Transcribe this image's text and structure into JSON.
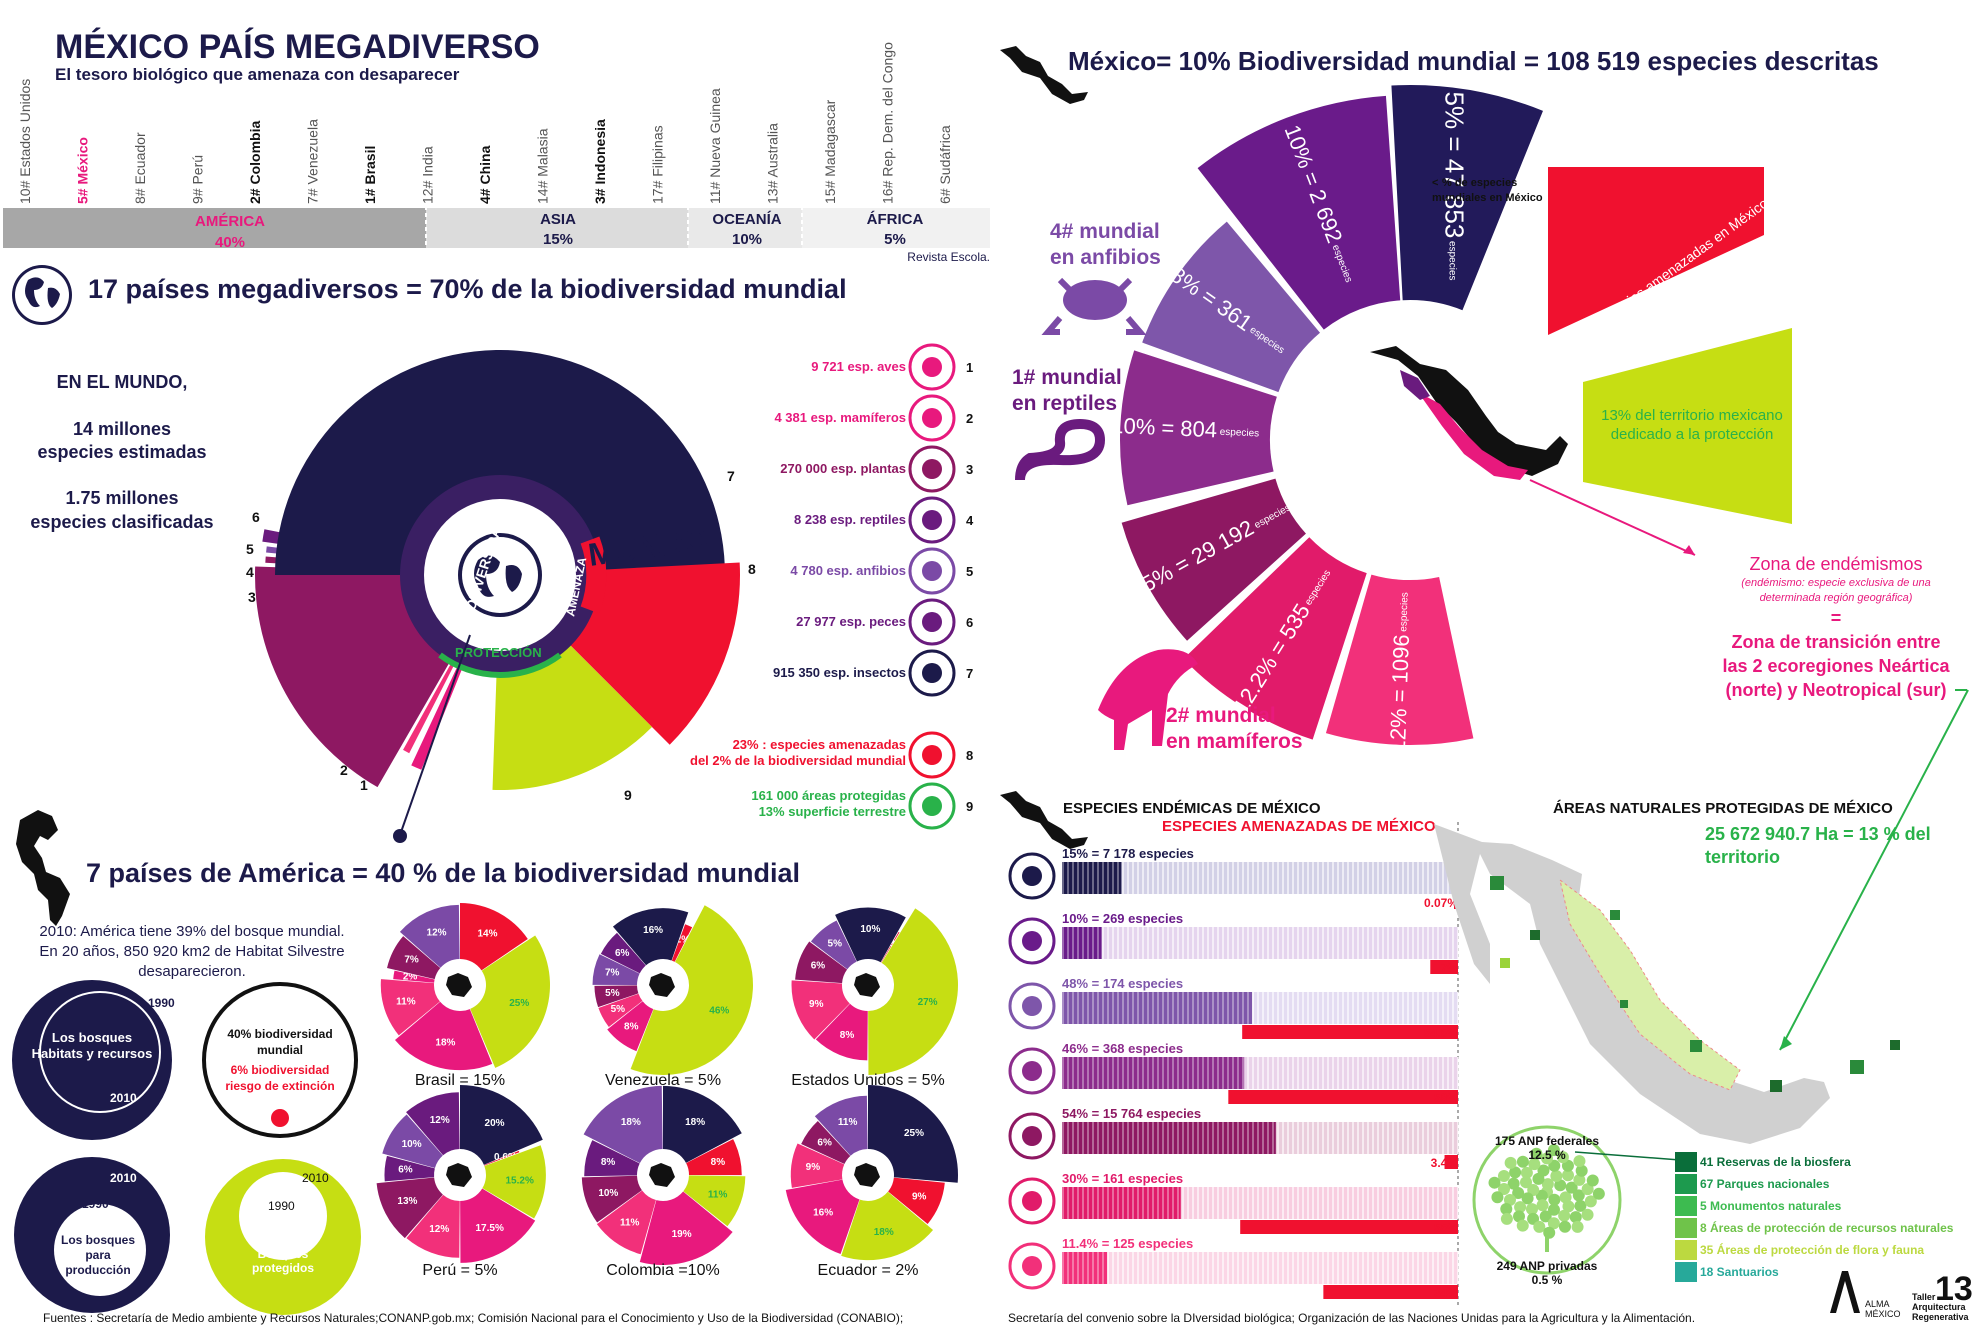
{
  "colors": {
    "navy": "#1c1a4a",
    "magenta": "#e8197d",
    "red": "#f0112f",
    "lime": "#c6de13",
    "purple": "#6a1b7e",
    "violet": "#7b4aa6",
    "plum": "#8e1862",
    "pink": "#f2307a",
    "green": "#29b24a",
    "gray": "#a8a8a8",
    "lightgray": "#e9e9e9"
  },
  "header": {
    "title": "MÉXICO PAÍS MEGADIVERSO",
    "subtitle": "El tesoro biológico que amenaza con desaparecer",
    "source": "Revista Escola."
  },
  "countries": [
    "10# Estados Unidos",
    "5# México",
    "8# Ecuador",
    "9# Perú",
    "2# Colombia",
    "7# Venezuela",
    "1# Brasil",
    "12# India",
    "4# China",
    "14# Malasia",
    "3# Indonesia",
    "17# Filipinas",
    "11# Nueva Guinea",
    "13# Australia",
    "15# Madagascar",
    "16# Rep. Dem. del Congo",
    "6# Sudáfrica"
  ],
  "regions": [
    {
      "name": "AMÉRICA",
      "pct": "40%"
    },
    {
      "name": "ASIA",
      "pct": "15%"
    },
    {
      "name": "OCEANÍA",
      "pct": "10%"
    },
    {
      "name": "ÁFRICA",
      "pct": "5%"
    }
  ],
  "world": {
    "heading": "17 países megadiversos = 70% de la biodiversidad mundial",
    "left_lines": [
      "EN EL MUNDO,",
      "14 millones",
      "especies estimadas",
      "1.75 millones",
      "especies clasificadas"
    ],
    "center_labels": {
      "mundo": "MUNDO",
      "biodiversidad": "BIODIVERSIDAD",
      "amenaza": "AMENAZA",
      "proteccion": "PROTECCIÓN"
    },
    "legend": [
      {
        "n": "1",
        "text": "9 721 esp. aves",
        "icon": "bird-icon"
      },
      {
        "n": "2",
        "text": "4 381 esp. mamíferos",
        "icon": "elephant-icon"
      },
      {
        "n": "3",
        "text": "270 000 esp. plantas",
        "icon": "tree-icon"
      },
      {
        "n": "4",
        "text": "8 238 esp. reptiles",
        "icon": "snake-icon"
      },
      {
        "n": "5",
        "text": "4 780 esp. anfibios",
        "icon": "frog-icon"
      },
      {
        "n": "6",
        "text": "27 977 esp. peces",
        "icon": "fish-icon"
      },
      {
        "n": "7",
        "text": "915 350 esp. insectos",
        "icon": "beetle-icon"
      },
      {
        "n": "8",
        "text": "23% : especies amenazadas",
        "text2": "del 2% de la biodiversidad mundial",
        "icon": "monkey-icon"
      },
      {
        "n": "9",
        "text": "161 000 áreas protegidas",
        "text2": "13% superficie terrestre",
        "icon": "tree-icon"
      }
    ]
  },
  "america": {
    "heading": "7 países de América = 40 % de la biodiversidad mundial",
    "note": [
      "2010: América tiene 39% del bosque mundial.",
      "En 20 años, 850 920 km2 de Habitat Silvestre",
      "desaparecieron."
    ],
    "circles": {
      "c1_title": [
        "Los bosques",
        "Habitats y recursos"
      ],
      "c1_y1": "1990",
      "c1_y2": "2010",
      "c2_title": [
        "40% biodiversidad",
        "mundial"
      ],
      "c2_red": [
        "6% biodiversidad",
        "riesgo de extinción"
      ],
      "c3_title": [
        "Los bosques",
        "para",
        "producción"
      ],
      "c3_y1": "2010",
      "c3_y2": "1990",
      "c4_title": [
        "Bosques",
        "protegidos"
      ],
      "c4_y1": "2010",
      "c4_y2": "1990"
    }
  },
  "mexico": {
    "heading": "México= 10% Biodiversidad mundial = 108 519 especies descritas",
    "note": [
      "% de especies",
      "mundiales en México"
    ],
    "ranks": [
      "4# mundial",
      "en anfibios",
      "1# mundial",
      "en reptiles",
      "2# mundial",
      "en mamíferos"
    ],
    "red_box": "1 810 especies amenazadas en México",
    "lime_box": [
      "13% del territorio mexicano",
      "dedicado a la protección"
    ],
    "endemism": [
      "Zona de endémismos",
      "(endémismo: especie exclusiva de una",
      "determinada región geográfica)",
      "=",
      "Zona de transición entre",
      "las 2 ecoregiones Neártica",
      "(norte) y Neotropical (sur)"
    ]
  },
  "endemic": {
    "title": "ESPECIES ENDÉMICAS DE MÉXICO",
    "subtitle": "ESPECIES AMENAZADAS DE MÉXICO",
    "rows": [
      {
        "label": "15% = 7 178 especies",
        "threat": "0.07%",
        "icon": "beetle-icon"
      },
      {
        "label": "10% = 269 especies",
        "threat": "7%",
        "icon": "fish-icon"
      },
      {
        "label": "48% = 174 especies",
        "threat": "54.5%",
        "icon": "frog-icon"
      },
      {
        "label": "46% = 368 especies",
        "threat": "58%",
        "icon": "snake-icon"
      },
      {
        "label": "54% = 15 764 especies",
        "threat": "3.4%",
        "icon": "tree-icon"
      },
      {
        "label": "30% = 161 especies",
        "threat": "55%",
        "icon": "elephant-icon"
      },
      {
        "label": "11.4% = 125 especies",
        "threat": "34%",
        "icon": "bird-icon"
      }
    ]
  },
  "anp": {
    "title": "ÁREAS NATURALES PROTEGIDAS DE MÉXICO",
    "subtitle": [
      "25 672 940.7 Ha = 13 % del",
      "territorio"
    ],
    "federal": [
      "175 ANP federales",
      "12.5 %"
    ],
    "private": [
      "249 ANP privadas",
      "0.5 %"
    ],
    "legend": [
      "41 Reservas de la biosfera",
      "67 Parques nacionales",
      "5 Monumentos naturales",
      "8 Áreas de protección de recursos naturales",
      "35 Áreas de protección de flora y fauna",
      "18 Santuarios"
    ]
  },
  "footer": {
    "left": "Fuentes : Secretaría de Medio ambiente y Recursos Naturales;CONANP.gob.mx; Comisión Nacional para el Conocimiento y Uso de la Biodiversidad (CONABIO);",
    "right": "Secretaría del convenio sobre la DIversidad biológica; Organización de las Naciones Unidas para la Agricultura y la Alimentación.",
    "logo1": [
      "ALMA",
      "MÉXICO"
    ],
    "logo2": [
      "Taller",
      "Arquitectura",
      "Regenerativa"
    ]
  },
  "chart_data": [
    {
      "type": "pie",
      "title": "17 países megadiversos = 70% de la biodiversidad mundial",
      "categories": [
        "1",
        "2",
        "3",
        "4",
        "5",
        "6",
        "7",
        "8",
        "9"
      ],
      "values": [
        9721,
        4381,
        270000,
        8238,
        4780,
        27977,
        915350,
        23,
        13
      ]
    },
    {
      "type": "pie",
      "title": "México= 10% Biodiversidad mundial = 108 519 especies descritas",
      "categories": [
        "5% = 47 853 especies",
        "10% = 2 692 especies",
        "8% = 361 especies",
        "10% = 804 especies",
        "9.5% = 29 192 especies",
        "12.2% = 535 especies",
        "12% = 1096 especies"
      ],
      "values": [
        5,
        10,
        8,
        10,
        9.5,
        12.2,
        12
      ]
    },
    {
      "type": "pie",
      "title": "Brasil = 15%",
      "labels": [
        "14%",
        "25%",
        "18%",
        "11%",
        "2%",
        "7%",
        "12%"
      ],
      "values": [
        14,
        25,
        18,
        11,
        2,
        7,
        12
      ]
    },
    {
      "type": "pie",
      "title": "Venezuela = 5%",
      "labels": [
        "2%",
        "46%",
        "8%",
        "5%",
        "5%",
        "7%",
        "6%",
        "16%"
      ],
      "values": [
        2,
        46,
        8,
        5,
        5,
        7,
        6,
        16
      ]
    },
    {
      "type": "pie",
      "title": "Estados Unidos = 5%",
      "labels": [
        "0.3%",
        "27%",
        "8%",
        "9%",
        "6%",
        "5%",
        "10%"
      ],
      "values": [
        0.3,
        27,
        8,
        9,
        6,
        5,
        10
      ]
    },
    {
      "type": "pie",
      "title": "Perú = 5%",
      "labels": [
        "20%",
        "0.6%",
        "15.2%",
        "17.5%",
        "12%",
        "13%",
        "6%",
        "10%",
        "12%"
      ],
      "values": [
        20,
        0.6,
        15.2,
        17.5,
        12,
        13,
        6,
        10,
        12
      ]
    },
    {
      "type": "pie",
      "title": "Colombia =10%",
      "labels": [
        "18%",
        "8%",
        "11%",
        "19%",
        "11%",
        "10%",
        "8%",
        "18%"
      ],
      "values": [
        18,
        8,
        11,
        19,
        11,
        10,
        8,
        18
      ]
    },
    {
      "type": "pie",
      "title": "Ecuador = 2%",
      "labels": [
        "25%",
        "9%",
        "18%",
        "16%",
        "9%",
        "6%",
        "11%"
      ],
      "values": [
        25,
        9,
        18,
        16,
        9,
        6,
        11
      ]
    },
    {
      "type": "bar",
      "title": "ESPECIES ENDÉMICAS DE MÉXICO",
      "categories": [
        "insectos",
        "peces",
        "anfibios",
        "reptiles",
        "plantas",
        "mamíferos",
        "aves"
      ],
      "series": [
        {
          "name": "ESPECIES ENDÉMICAS DE MÉXICO",
          "values": [
            15,
            10,
            48,
            46,
            54,
            30,
            11.4
          ]
        },
        {
          "name": "ESPECIES AMENAZADAS DE MÉXICO",
          "values": [
            0.07,
            7,
            54.5,
            58,
            3.4,
            55,
            34
          ]
        }
      ],
      "ylim": [
        0,
        100
      ]
    }
  ]
}
